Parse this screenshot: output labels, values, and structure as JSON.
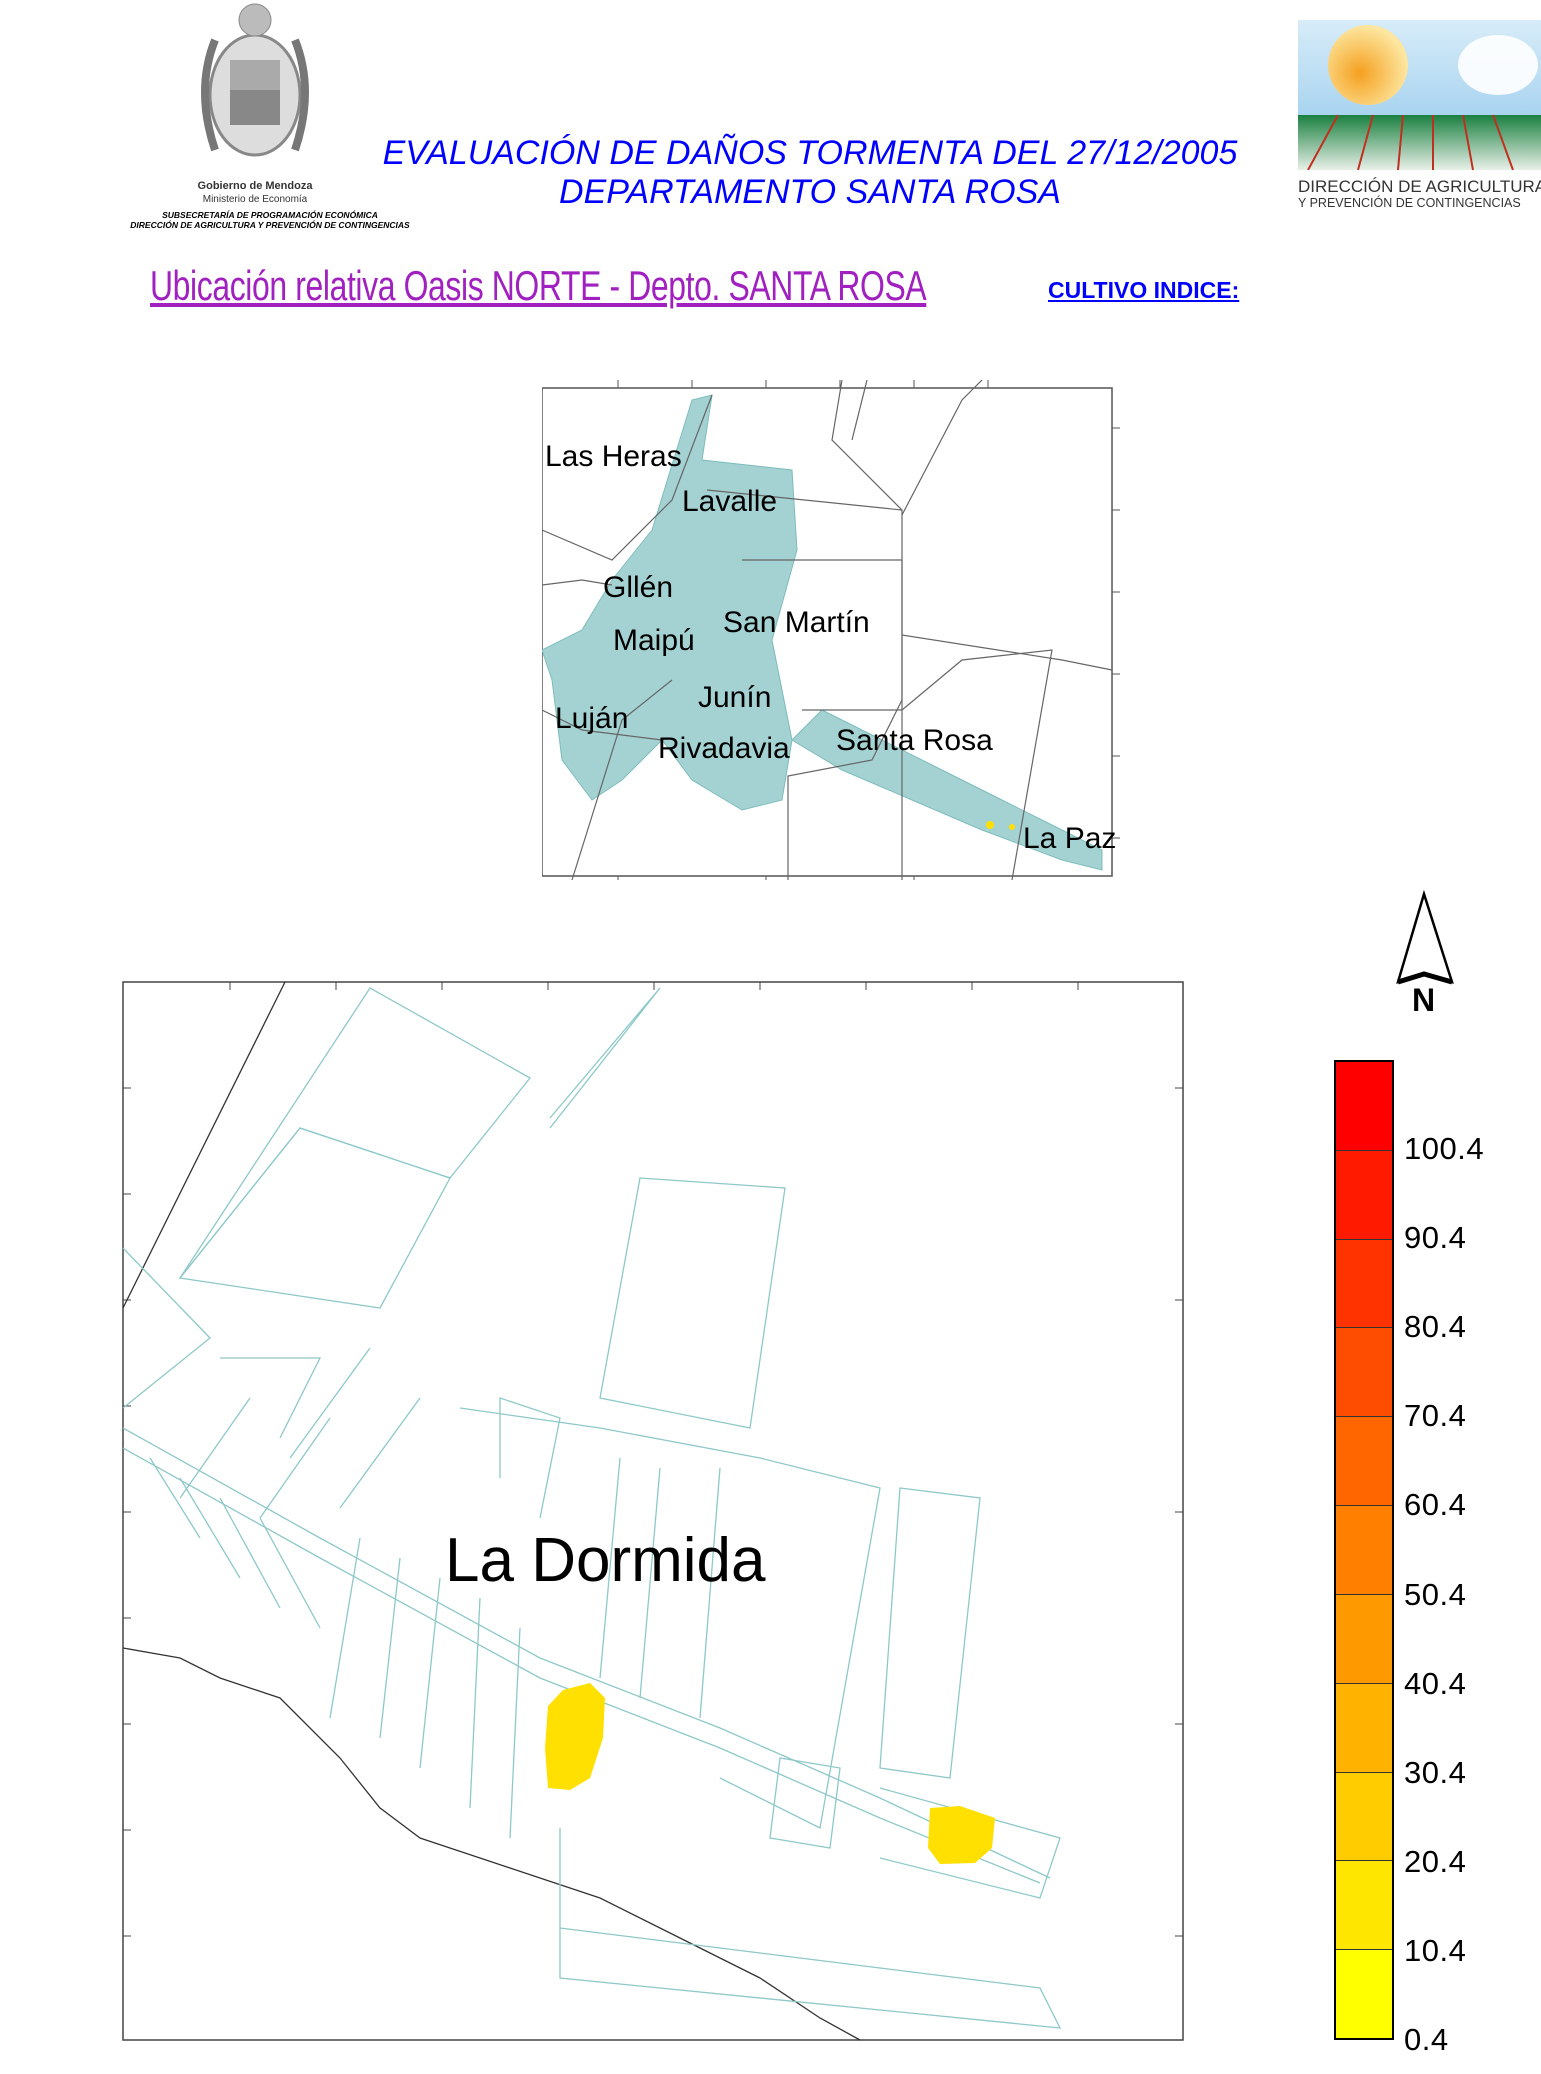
{
  "header": {
    "title_line1": "EVALUACIÓN DE DAÑOS TORMENTA DEL 27/12/2005",
    "title_line2": "DEPARTAMENTO SANTA ROSA",
    "subtitle": "Ubicación relativa Oasis NORTE - Depto. SANTA ROSA",
    "cultivo_label": "CULTIVO INDICE:",
    "left_logo": {
      "line1": "Gobierno de Mendoza",
      "line2": "Ministerio de Economía",
      "line3": "SUBSECRETARÍA DE PROGRAMACIÓN ECONÓMICA",
      "line4": "DIRECCIÓN DE AGRICULTURA Y PREVENCIÓN DE CONTINGENCIAS"
    },
    "right_logo": {
      "line1": "DIRECCIÓN DE AGRICULTURA",
      "line2": "Y PREVENCIÓN DE CONTINGENCIAS"
    }
  },
  "inset_map": {
    "labels": [
      "Las Heras",
      "Lavalle",
      "Gllén",
      "San Martín",
      "Maipú",
      "Junín",
      "Luján",
      "Rivadavia",
      "Santa Rosa",
      "La Paz"
    ]
  },
  "main_map": {
    "place_label": "La Dormida",
    "north_label": "N"
  },
  "legend": {
    "colors": [
      "#ff0000",
      "#ff1a00",
      "#ff3300",
      "#ff4d00",
      "#ff6600",
      "#ff8000",
      "#ff9900",
      "#ffb300",
      "#ffcc00",
      "#ffe600",
      "#ffff00"
    ],
    "labels": [
      "100.4",
      "90.4",
      "80.4",
      "70.4",
      "60.4",
      "50.4",
      "40.4",
      "30.4",
      "20.4",
      "10.4",
      "0.4"
    ]
  },
  "colors": {
    "title": "#0000ff",
    "subtitle": "#a020c0",
    "parcels": "#8ec8c8",
    "damage": "#ffe000"
  }
}
